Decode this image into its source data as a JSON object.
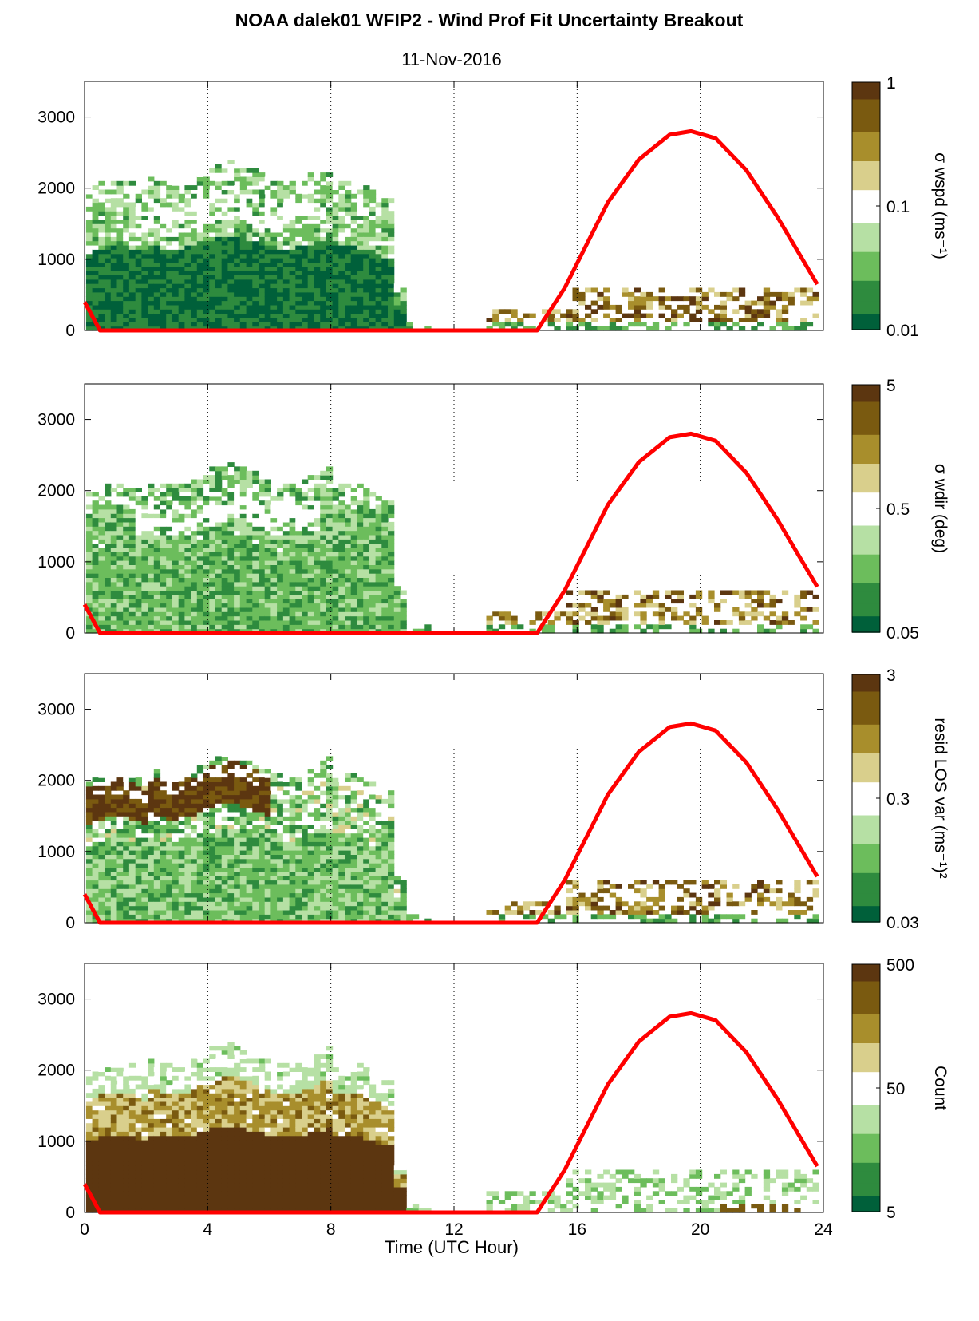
{
  "figure": {
    "title": "NOAA dalek01 WFIP2 - Wind Prof Fit Uncertainty Breakout",
    "subtitle": "11-Nov-2016",
    "xlabel": "Time (UTC Hour)"
  },
  "colors": {
    "sun_curve": "#ff0000",
    "colormap": [
      "#00603a",
      "#2e8b3e",
      "#6cbd5c",
      "#b6e0a4",
      "#ffffff",
      "#d9cf8c",
      "#a88e2c",
      "#7a5a10",
      "#5c3610"
    ]
  },
  "chart_data": [
    {
      "type": "heatmap",
      "colorbar_label": "σ wspd (ms⁻¹)",
      "colorbar_scale": "log",
      "colorbar_range": [
        0.01,
        1
      ],
      "colorbar_ticks": [
        "1",
        "0.1",
        "0.01"
      ],
      "xlim": [
        0,
        24
      ],
      "ylim": [
        0,
        3500
      ],
      "xticks": [
        "0",
        "4",
        "8",
        "12",
        "16",
        "20",
        "24"
      ],
      "yticks": [
        "0",
        "1000",
        "2000",
        "3000"
      ],
      "vgrid": [
        4,
        8,
        12,
        16,
        20
      ],
      "overlay_line": {
        "color": "red",
        "x": [
          0,
          0.5,
          14.7,
          15.6,
          17,
          18,
          19,
          19.7,
          20.5,
          21.5,
          22.5,
          23.8
        ],
        "y": [
          400,
          0,
          0,
          600,
          1800,
          2400,
          2750,
          2800,
          2700,
          2250,
          1600,
          650
        ]
      }
    },
    {
      "type": "heatmap",
      "colorbar_label": "σ wdir (deg)",
      "colorbar_scale": "log",
      "colorbar_range": [
        0.05,
        5
      ],
      "colorbar_ticks": [
        "5",
        "0.5",
        "0.05"
      ],
      "xlim": [
        0,
        24
      ],
      "ylim": [
        0,
        3500
      ],
      "xticks": [
        "0",
        "4",
        "8",
        "12",
        "16",
        "20",
        "24"
      ],
      "yticks": [
        "0",
        "1000",
        "2000",
        "3000"
      ],
      "vgrid": [
        4,
        8,
        12,
        16,
        20
      ],
      "overlay_line": {
        "color": "red",
        "x": [
          0,
          0.5,
          14.7,
          15.6,
          17,
          18,
          19,
          19.7,
          20.5,
          21.5,
          22.5,
          23.8
        ],
        "y": [
          400,
          0,
          0,
          600,
          1800,
          2400,
          2750,
          2800,
          2700,
          2250,
          1600,
          650
        ]
      }
    },
    {
      "type": "heatmap",
      "colorbar_label": "resid LOS var (ms⁻¹)²",
      "colorbar_scale": "log",
      "colorbar_range": [
        0.03,
        3
      ],
      "colorbar_ticks": [
        "3",
        "0.3",
        "0.03"
      ],
      "xlim": [
        0,
        24
      ],
      "ylim": [
        0,
        3500
      ],
      "xticks": [
        "0",
        "4",
        "8",
        "12",
        "16",
        "20",
        "24"
      ],
      "yticks": [
        "0",
        "1000",
        "2000",
        "3000"
      ],
      "vgrid": [
        4,
        8,
        12,
        16,
        20
      ],
      "overlay_line": {
        "color": "red",
        "x": [
          0,
          0.5,
          14.7,
          15.6,
          17,
          18,
          19,
          19.7,
          20.5,
          21.5,
          22.5,
          23.8
        ],
        "y": [
          400,
          0,
          0,
          600,
          1800,
          2400,
          2750,
          2800,
          2700,
          2250,
          1600,
          650
        ]
      }
    },
    {
      "type": "heatmap",
      "colorbar_label": "Count",
      "colorbar_scale": "log",
      "colorbar_range": [
        1,
        500
      ],
      "colorbar_ticks": [
        "500",
        "50",
        "5"
      ],
      "xlim": [
        0,
        24
      ],
      "ylim": [
        0,
        3500
      ],
      "xticks": [
        "0",
        "4",
        "8",
        "12",
        "16",
        "20",
        "24"
      ],
      "yticks": [
        "0",
        "1000",
        "2000",
        "3000"
      ],
      "vgrid": [
        4,
        8,
        12,
        16,
        20
      ],
      "overlay_line": {
        "color": "red",
        "x": [
          0,
          0.5,
          14.7,
          15.6,
          17,
          18,
          19,
          19.7,
          20.5,
          21.5,
          22.5,
          23.8
        ],
        "y": [
          400,
          0,
          0,
          600,
          1800,
          2400,
          2750,
          2800,
          2700,
          2250,
          1600,
          650
        ]
      }
    }
  ]
}
